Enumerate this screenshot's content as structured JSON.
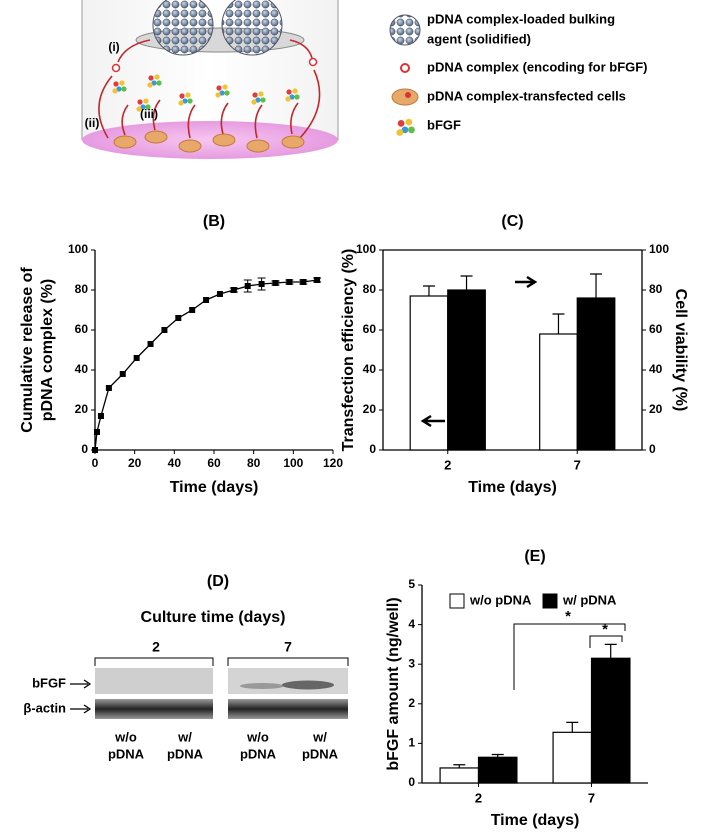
{
  "figure": {
    "panel_a": {
      "labels": [
        "(i)",
        "(ii)",
        "(iii)"
      ],
      "legend": [
        [
          "pDNA complex-loaded bulking",
          "agent (solidified)"
        ],
        [
          "pDNA complex (encoding for bFGF)"
        ],
        [
          "pDNA complex-transfected cells"
        ],
        [
          "bFGF"
        ]
      ]
    },
    "panel_d": {
      "title": "(D)",
      "header": "Culture time (days)",
      "groups": [
        "2",
        "7"
      ],
      "rows": [
        "bFGF",
        "β-actin"
      ],
      "lanes": [
        [
          "w/o",
          "pDNA"
        ],
        [
          "w/",
          "pDNA"
        ],
        [
          "w/o",
          "pDNA"
        ],
        [
          "w/",
          "pDNA"
        ]
      ]
    }
  },
  "chart_data": [
    {
      "type": "line",
      "title": "(B)",
      "x_label": "Time (days)",
      "y_label": [
        "Cumulative release of",
        "pDNA complex (%)"
      ],
      "x": [
        0,
        1,
        3,
        7,
        14,
        21,
        28,
        35,
        42,
        49,
        56,
        63,
        70,
        77,
        84,
        91,
        98,
        105,
        112
      ],
      "series": [
        {
          "color": "#000000",
          "values": [
            0,
            9,
            17,
            31,
            38,
            46,
            53,
            60,
            66,
            70,
            75,
            78,
            80,
            82,
            83,
            83.5,
            84,
            84,
            85
          ],
          "errors": [
            0,
            0,
            0,
            0,
            0,
            0,
            0,
            0,
            0,
            0,
            0,
            0,
            1,
            3,
            3,
            1,
            1,
            1,
            1
          ]
        }
      ],
      "xlim": [
        0,
        120
      ],
      "xticks": [
        0,
        20,
        40,
        60,
        80,
        100,
        120
      ],
      "ylim": [
        0,
        100
      ],
      "yticks": [
        0,
        20,
        40,
        60,
        80,
        100
      ]
    },
    {
      "type": "bar",
      "title": "(C)",
      "x_label": "Time (days)",
      "y_label": "Transfection efficiency (%)",
      "y2_label": "Cell  viability (%)",
      "categories": [
        "2",
        "7"
      ],
      "series": [
        {
          "color": "#ffffff",
          "values": [
            77,
            58
          ],
          "errors": [
            5,
            10
          ]
        },
        {
          "color": "#000000",
          "axis": "y2",
          "values": [
            80,
            76
          ],
          "errors": [
            7,
            12
          ]
        }
      ],
      "ylim": [
        0,
        100
      ],
      "yticks": [
        0,
        20,
        40,
        60,
        80,
        100
      ],
      "y2lim": [
        0,
        100
      ],
      "y2ticks": [
        0,
        20,
        40,
        60,
        80,
        100
      ]
    },
    {
      "type": "bar",
      "title": "(E)",
      "x_label": "Time (days)",
      "y_label": "bFGF amount  (ng/well)",
      "categories": [
        "2",
        "7"
      ],
      "series": [
        {
          "name": "w/o pDNA",
          "color": "#ffffff",
          "values": [
            0.38,
            1.28
          ],
          "errors": [
            0.08,
            0.25
          ]
        },
        {
          "name": "w/ pDNA",
          "color": "#000000",
          "values": [
            0.65,
            3.15
          ],
          "errors": [
            0.07,
            0.35
          ]
        }
      ],
      "ylim": [
        0,
        5
      ],
      "yticks": [
        0,
        1,
        2,
        3,
        4,
        5
      ],
      "annotations": [
        "*",
        "*"
      ],
      "legend": "top"
    }
  ]
}
